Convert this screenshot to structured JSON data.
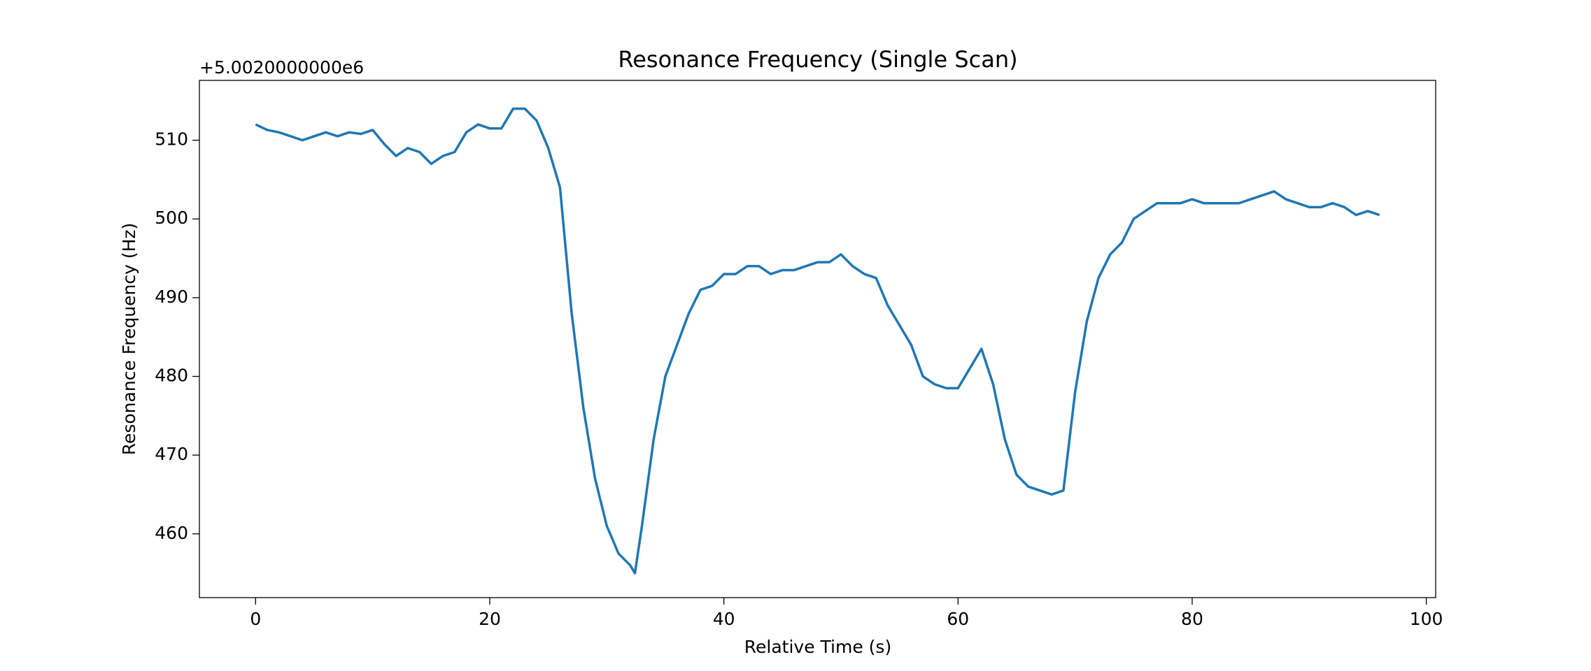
{
  "chart_data": {
    "type": "line",
    "title": "Resonance Frequency (Single Scan)",
    "x_label": "Relative Time (s)",
    "y_label": "Resonance Frequency (Hz)",
    "y_offset_label": "+5.0020000000e6",
    "x": [
      0,
      1,
      2,
      3,
      4,
      5,
      6,
      7,
      8,
      9,
      10,
      11,
      12,
      13,
      14,
      15,
      16,
      17,
      18,
      19,
      20,
      21,
      22,
      23,
      24,
      25,
      26,
      27,
      28,
      29,
      30,
      31,
      32,
      32.4,
      33,
      34,
      35,
      36,
      37,
      38,
      39,
      40,
      41,
      42,
      43,
      44,
      45,
      46,
      47,
      48,
      49,
      50,
      51,
      52,
      53,
      54,
      55,
      56,
      57,
      58,
      59,
      60,
      61,
      62,
      63,
      64,
      65,
      66,
      67,
      68,
      69,
      70,
      71,
      72,
      73,
      74,
      75,
      76,
      77,
      78,
      79,
      80,
      81,
      82,
      83,
      84,
      85,
      86,
      87,
      88,
      89,
      90,
      91,
      92,
      93,
      94,
      95,
      96
    ],
    "series": [
      {
        "name": "Resonance Frequency",
        "color": "#1f77b4",
        "values": [
          512,
          511.3,
          511,
          510.5,
          510,
          510.5,
          511,
          510.5,
          511,
          510.8,
          511.3,
          509.5,
          508,
          509,
          508.5,
          507,
          508,
          508.5,
          511,
          512,
          511.5,
          511.5,
          514,
          514,
          512.5,
          509,
          504,
          488,
          476,
          467,
          461,
          457.5,
          456,
          455,
          461,
          472,
          480,
          484,
          488,
          491,
          491.5,
          493,
          493,
          494,
          494,
          493,
          493.5,
          493.5,
          494,
          494.5,
          494.5,
          495.5,
          494,
          493,
          492.5,
          489,
          486.5,
          484,
          480,
          479,
          478.5,
          478.5,
          481,
          483.5,
          479,
          472,
          467.5,
          466,
          465.5,
          465,
          465.5,
          478,
          487,
          492.5,
          495.5,
          497,
          500,
          501,
          502,
          502,
          502,
          502.5,
          502,
          502,
          502,
          502,
          502.5,
          503,
          503.5,
          502.5,
          502,
          501.5,
          501.5,
          502,
          501.5,
          500.5,
          501,
          500.5
        ]
      }
    ],
    "xlim": [
      -4.8,
      100.8
    ],
    "ylim": [
      451.9,
      517.6
    ],
    "xticks": [
      0,
      20,
      40,
      60,
      80,
      100
    ],
    "yticks": [
      460,
      470,
      480,
      490,
      500,
      510
    ]
  }
}
